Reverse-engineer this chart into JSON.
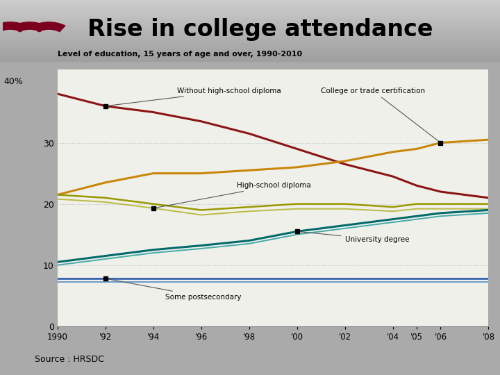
{
  "title_bar": "Rise in college attendance",
  "subtitle": "Level of education, 15 years of age and over, 1990-2010",
  "source": "Source : HRSDC",
  "years": [
    1990,
    1992,
    1994,
    1996,
    1998,
    2000,
    2002,
    2004,
    2005,
    2006,
    2008
  ],
  "without_hs": [
    38.0,
    36.0,
    35.0,
    33.5,
    31.5,
    29.0,
    26.5,
    24.5,
    23.0,
    22.0,
    21.0
  ],
  "college_trade": [
    21.5,
    23.5,
    25.0,
    25.0,
    25.5,
    26.0,
    27.0,
    28.5,
    29.0,
    30.0,
    30.5
  ],
  "hs_diploma_hi": [
    21.5,
    21.0,
    20.0,
    19.0,
    19.5,
    20.0,
    20.0,
    19.5,
    20.0,
    20.0,
    20.0
  ],
  "hs_diploma_lo": [
    20.8,
    20.3,
    19.3,
    18.2,
    18.8,
    19.2,
    19.2,
    18.8,
    19.2,
    19.2,
    19.2
  ],
  "university_hi": [
    10.5,
    11.5,
    12.5,
    13.2,
    14.0,
    15.5,
    16.5,
    17.5,
    18.0,
    18.5,
    19.0
  ],
  "university_lo": [
    10.0,
    11.0,
    12.0,
    12.7,
    13.5,
    15.0,
    16.0,
    17.0,
    17.5,
    18.0,
    18.5
  ],
  "postsec_hi": [
    7.8,
    7.8,
    7.8,
    7.8,
    7.8,
    7.8,
    7.8,
    7.8,
    7.8,
    7.8,
    7.8
  ],
  "postsec_lo": [
    7.3,
    7.3,
    7.3,
    7.3,
    7.3,
    7.3,
    7.3,
    7.3,
    7.3,
    7.3,
    7.3
  ],
  "color_without_hs": "#8B1515",
  "color_college": "#C8870A",
  "color_hs_hi": "#999900",
  "color_hs_lo": "#BBBB44",
  "color_univ_hi": "#006B6B",
  "color_univ_lo": "#44AAAA",
  "color_postsec_hi": "#2255AA",
  "color_postsec_lo": "#6699CC",
  "bg_chart": "#F0F0EA",
  "header_bg": "#B8B8B8",
  "border_color": "#6B0000",
  "ylim": [
    0,
    42
  ],
  "yticks": [
    0,
    10,
    20,
    30
  ],
  "xtick_labels": [
    "1990",
    "'92",
    "'94",
    "'96",
    "'98",
    "'00",
    "'02",
    "'04",
    "'05",
    "'06",
    "'08"
  ]
}
